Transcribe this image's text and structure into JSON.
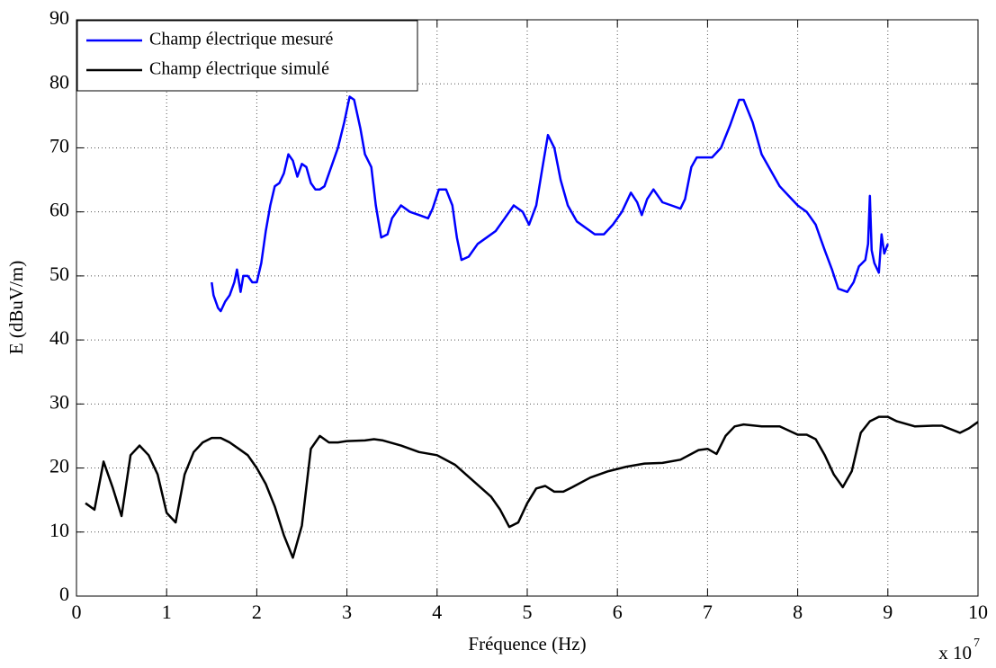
{
  "chart_data": {
    "type": "line",
    "x_label": "Fréquence (Hz)",
    "y_label": "E (dBuV/m)",
    "x_multiplier": {
      "base": "x 10",
      "exponent": "7"
    },
    "xlim": [
      0,
      10
    ],
    "xticks": [
      0,
      1,
      2,
      3,
      4,
      5,
      6,
      7,
      8,
      9,
      10
    ],
    "ylim": [
      0,
      90
    ],
    "yticks": [
      0,
      10,
      20,
      30,
      40,
      50,
      60,
      70,
      80,
      90
    ],
    "grid": true,
    "legend": "top-left",
    "series": [
      {
        "name": "Champ électrique mesuré",
        "color": "#0000ff",
        "x": [
          1.5,
          1.52,
          1.57,
          1.6,
          1.65,
          1.7,
          1.75,
          1.78,
          1.82,
          1.85,
          1.9,
          1.95,
          2.0,
          2.05,
          2.1,
          2.15,
          2.2,
          2.25,
          2.3,
          2.35,
          2.4,
          2.45,
          2.5,
          2.55,
          2.6,
          2.65,
          2.7,
          2.75,
          2.8,
          2.9,
          2.97,
          3.03,
          3.08,
          3.15,
          3.2,
          3.27,
          3.32,
          3.38,
          3.45,
          3.5,
          3.6,
          3.7,
          3.8,
          3.9,
          3.95,
          4.02,
          4.1,
          4.17,
          4.22,
          4.27,
          4.35,
          4.45,
          4.55,
          4.65,
          4.75,
          4.85,
          4.95,
          5.02,
          5.1,
          5.17,
          5.23,
          5.3,
          5.37,
          5.45,
          5.55,
          5.65,
          5.75,
          5.85,
          5.95,
          6.05,
          6.15,
          6.22,
          6.27,
          6.33,
          6.4,
          6.5,
          6.6,
          6.7,
          6.75,
          6.82,
          6.88,
          6.95,
          7.05,
          7.15,
          7.25,
          7.35,
          7.4,
          7.5,
          7.6,
          7.7,
          7.8,
          7.9,
          8.0,
          8.1,
          8.2,
          8.25,
          8.3,
          8.38,
          8.45,
          8.55,
          8.62,
          8.68,
          8.75,
          8.78,
          8.8,
          8.82,
          8.85,
          8.9,
          8.93,
          8.96,
          9.0
        ],
        "values": [
          49,
          47,
          45,
          44.5,
          46,
          47,
          49,
          51,
          47.5,
          50,
          50,
          49,
          49,
          52,
          57,
          61,
          64,
          64.5,
          66,
          69,
          68,
          65.5,
          67.5,
          67,
          64.5,
          63.5,
          63.5,
          64,
          66,
          70,
          74,
          78,
          77.5,
          73,
          69,
          67,
          61,
          56,
          56.5,
          59,
          61,
          60,
          59.5,
          59,
          60.5,
          63.5,
          63.5,
          61,
          56,
          52.5,
          53,
          55,
          56,
          57,
          59,
          61,
          60,
          58,
          61,
          67,
          72,
          70,
          65,
          61,
          58.5,
          57.5,
          56.5,
          56.5,
          58,
          60,
          63,
          61.5,
          59.5,
          62,
          63.5,
          61.5,
          61,
          60.5,
          62,
          67,
          68.5,
          68.5,
          68.5,
          70,
          73.5,
          77.5,
          77.5,
          74,
          69,
          66.5,
          64,
          62.5,
          61,
          60,
          58,
          56,
          54,
          51,
          48,
          47.5,
          49,
          51.5,
          52.5,
          55,
          62.5,
          54,
          52,
          50.5,
          56.5,
          53.5,
          55
        ]
      },
      {
        "name": "Champ électrique simulé",
        "color": "#000000",
        "x": [
          0.1,
          0.2,
          0.3,
          0.4,
          0.5,
          0.6,
          0.7,
          0.8,
          0.9,
          1.0,
          1.1,
          1.2,
          1.3,
          1.4,
          1.5,
          1.6,
          1.7,
          1.8,
          1.9,
          2.0,
          2.1,
          2.2,
          2.3,
          2.4,
          2.5,
          2.6,
          2.7,
          2.8,
          2.9,
          3.0,
          3.2,
          3.3,
          3.4,
          3.6,
          3.8,
          4.0,
          4.2,
          4.4,
          4.6,
          4.7,
          4.8,
          4.9,
          5.0,
          5.1,
          5.2,
          5.3,
          5.4,
          5.5,
          5.7,
          5.9,
          6.1,
          6.3,
          6.5,
          6.7,
          6.9,
          7.0,
          7.1,
          7.2,
          7.3,
          7.4,
          7.6,
          7.8,
          8.0,
          8.1,
          8.2,
          8.3,
          8.4,
          8.5,
          8.6,
          8.7,
          8.8,
          8.9,
          9.0,
          9.1,
          9.3,
          9.5,
          9.6,
          9.8,
          9.9,
          10.0
        ],
        "values": [
          14.5,
          13.5,
          21,
          17,
          12.5,
          22,
          23.5,
          22,
          19,
          13,
          11.5,
          19,
          22.5,
          24,
          24.7,
          24.7,
          24,
          23,
          22,
          20,
          17.5,
          14,
          9.5,
          6,
          11,
          23,
          25,
          24,
          24,
          24.2,
          24.3,
          24.5,
          24.3,
          23.5,
          22.5,
          22,
          20.5,
          18,
          15.5,
          13.5,
          10.8,
          11.5,
          14.5,
          16.8,
          17.2,
          16.3,
          16.3,
          17,
          18.5,
          19.5,
          20.2,
          20.7,
          20.8,
          21.3,
          22.8,
          23,
          22.2,
          25,
          26.5,
          26.8,
          26.5,
          26.5,
          25.2,
          25.2,
          24.5,
          22,
          19,
          17,
          19.5,
          25.5,
          27.3,
          28,
          28,
          27.3,
          26.5,
          26.6,
          26.6,
          25.5,
          26.2,
          27.2
        ]
      }
    ]
  }
}
